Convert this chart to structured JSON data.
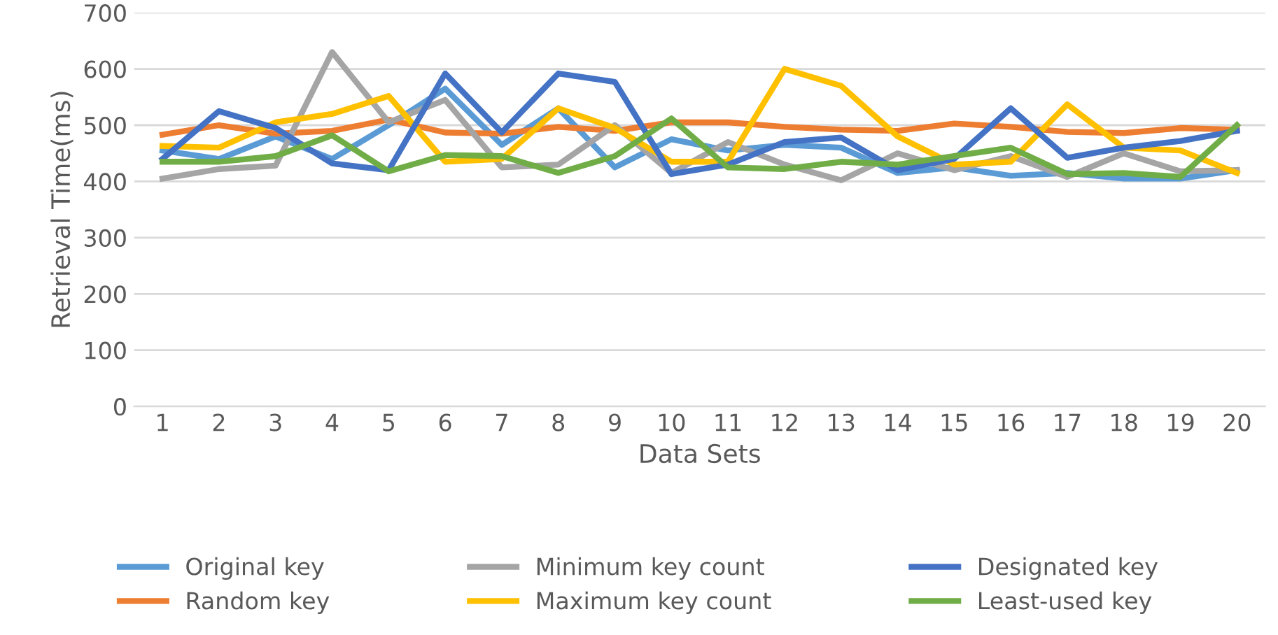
{
  "chart_data": {
    "type": "line",
    "xlabel": "Data Sets",
    "ylabel": "Retrieval Time(ms)",
    "categories": [
      "1",
      "2",
      "3",
      "4",
      "5",
      "6",
      "7",
      "8",
      "9",
      "10",
      "11",
      "12",
      "13",
      "14",
      "15",
      "16",
      "17",
      "18",
      "19",
      "20"
    ],
    "series": [
      {
        "name": "Original key",
        "color": "#5b9bd5",
        "values": [
          455,
          440,
          480,
          440,
          500,
          565,
          465,
          530,
          425,
          475,
          455,
          465,
          460,
          415,
          425,
          410,
          415,
          405,
          405,
          420
        ]
      },
      {
        "name": "Random key",
        "color": "#ed7d31",
        "values": [
          483,
          500,
          485,
          490,
          510,
          487,
          485,
          497,
          490,
          505,
          505,
          497,
          492,
          490,
          503,
          497,
          488,
          486,
          495,
          492
        ]
      },
      {
        "name": "Minimum key count",
        "color": "#a5a5a5",
        "values": [
          405,
          422,
          428,
          630,
          505,
          545,
          425,
          430,
          500,
          415,
          470,
          430,
          402,
          450,
          420,
          445,
          408,
          450,
          418,
          420
        ]
      },
      {
        "name": "Maximum key count",
        "color": "#ffc000",
        "values": [
          463,
          460,
          505,
          520,
          552,
          435,
          440,
          530,
          495,
          435,
          435,
          600,
          570,
          480,
          430,
          435,
          537,
          460,
          455,
          415
        ]
      },
      {
        "name": "Designated key",
        "color": "#4472c4",
        "values": [
          440,
          525,
          495,
          432,
          420,
          592,
          487,
          592,
          577,
          413,
          430,
          470,
          478,
          420,
          440,
          530,
          442,
          460,
          472,
          490
        ]
      },
      {
        "name": "Least-used key",
        "color": "#70ad47",
        "values": [
          435,
          435,
          445,
          482,
          418,
          447,
          445,
          415,
          445,
          512,
          425,
          422,
          435,
          430,
          445,
          460,
          413,
          415,
          408,
          500
        ]
      }
    ],
    "ylim": [
      0,
      700
    ],
    "yticks": [
      0,
      100,
      200,
      300,
      400,
      500,
      600,
      700
    ],
    "grid": "y",
    "legend": "bottom",
    "marker": "none",
    "line_style": "solid"
  }
}
